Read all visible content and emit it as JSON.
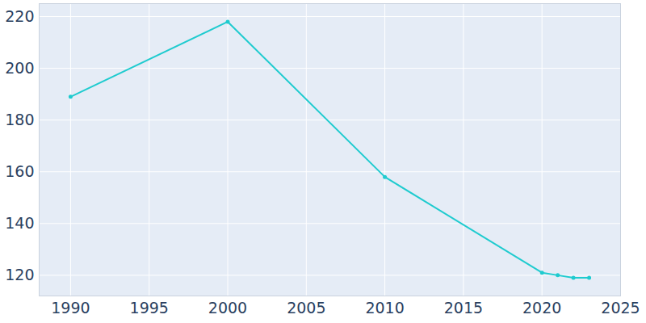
{
  "chart_data": {
    "type": "line",
    "x": [
      1990,
      2000,
      2010,
      2020,
      2021,
      2022,
      2023
    ],
    "values": [
      189,
      218,
      158,
      121,
      120,
      119,
      119
    ],
    "color": "#1fcbcf",
    "marker": "circle",
    "xlim": [
      1988,
      2025
    ],
    "xticks": [
      1990,
      1995,
      2000,
      2005,
      2010,
      2015,
      2020,
      2025
    ],
    "ylim": [
      112,
      225
    ],
    "yticks": [
      120,
      140,
      160,
      180,
      200,
      220
    ],
    "grid": true
  }
}
